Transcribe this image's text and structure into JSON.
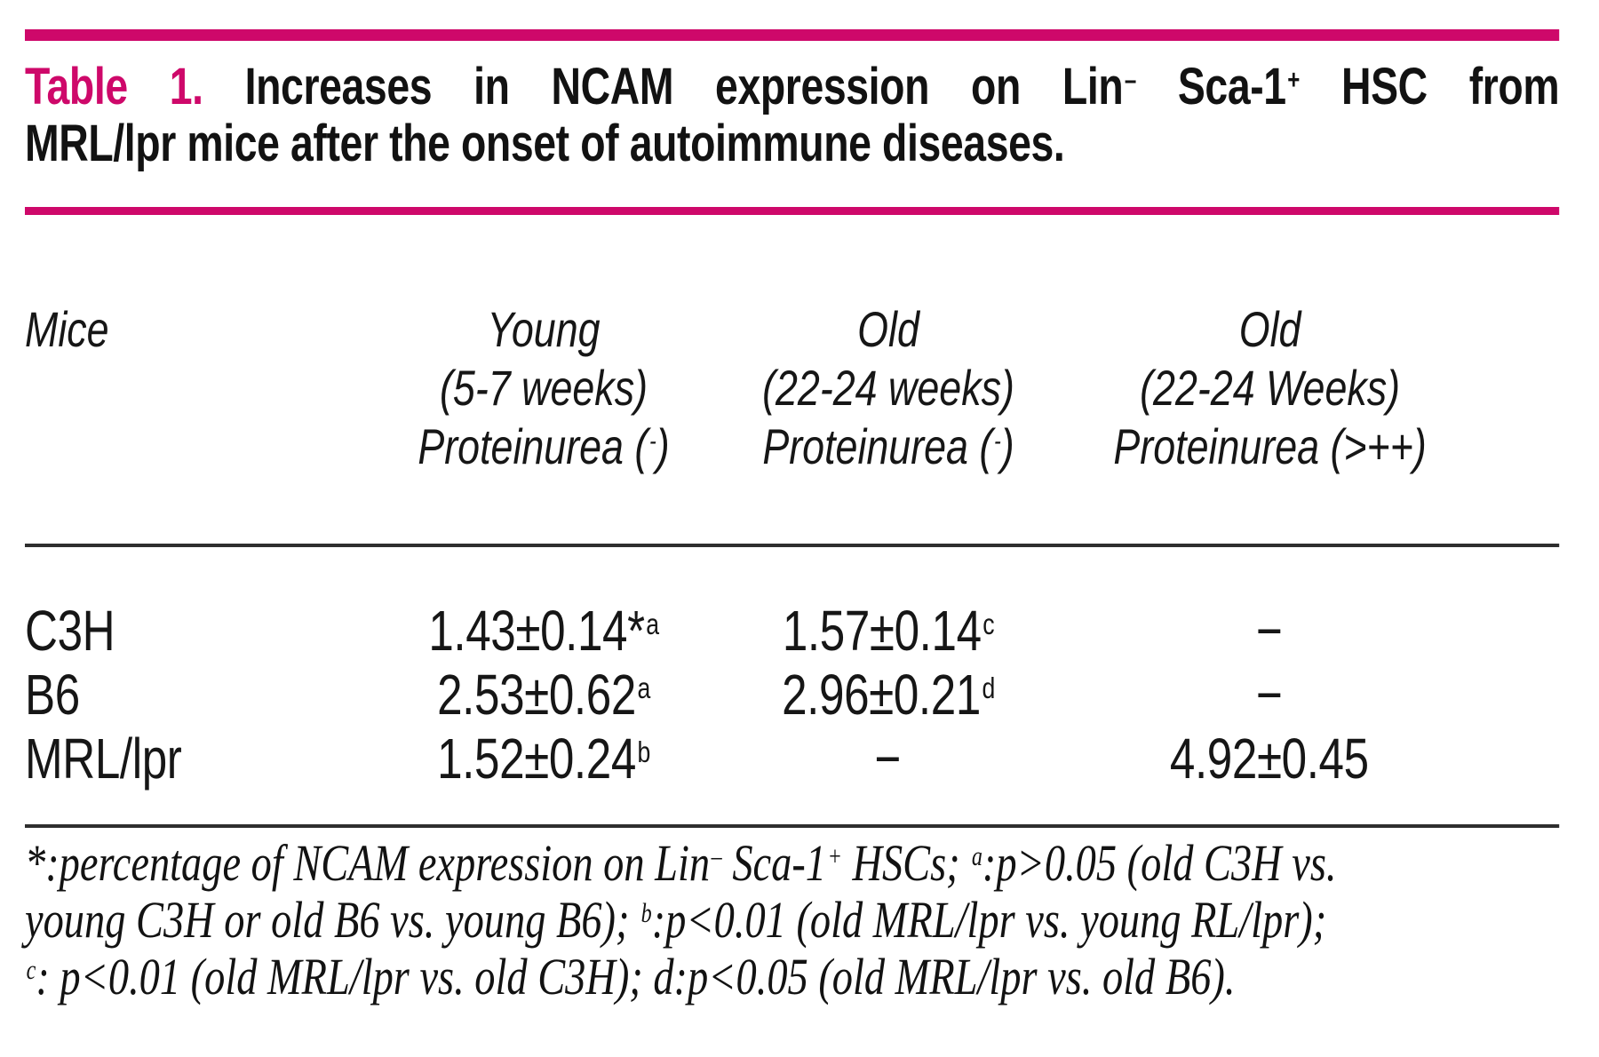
{
  "colors": {
    "accent_magenta": "#CE086A",
    "text_black": "#161616",
    "rule_dark": "#2e2e2e",
    "background": "#ffffff"
  },
  "title": {
    "label": "Table 1.",
    "line1_segments": [
      {
        "text": "Increases in NCAM expression on Lin"
      },
      {
        "text": "–",
        "sup": true
      },
      {
        "text": " Sca-1"
      },
      {
        "text": "+",
        "sup": true
      },
      {
        "text": " HSC from"
      }
    ],
    "line2": "MRL/lpr mice after the onset of autoimmune diseases."
  },
  "table": {
    "header": {
      "col1": {
        "line1": [
          {
            "text": "Mice"
          }
        ]
      },
      "col2": {
        "line1": [
          {
            "text": "Young"
          }
        ],
        "line2": [
          {
            "text": "(5-7 weeks)"
          }
        ],
        "line3": [
          {
            "text": "Proteinurea ("
          },
          {
            "text": "-",
            "sup": true
          },
          {
            "text": ")"
          }
        ]
      },
      "col3": {
        "line1": [
          {
            "text": "Old"
          }
        ],
        "line2": [
          {
            "text": "(22-24 weeks)"
          }
        ],
        "line3": [
          {
            "text": "Proteinurea ("
          },
          {
            "text": "-",
            "sup": true
          },
          {
            "text": ")"
          }
        ]
      },
      "col4": {
        "line1": [
          {
            "text": "Old"
          }
        ],
        "line2": [
          {
            "text": "(22-24 Weeks)"
          }
        ],
        "line3": [
          {
            "text": "Proteinurea (>++)"
          }
        ]
      }
    },
    "rows": [
      {
        "name": "C3H",
        "young": {
          "value": "1.43±0.14*",
          "sup": "a"
        },
        "old_neg": {
          "value": "1.57±0.14",
          "sup": "c"
        },
        "old_pos": {
          "value": "−",
          "sup": ""
        }
      },
      {
        "name": "B6",
        "young": {
          "value": "2.53±0.62",
          "sup": "a"
        },
        "old_neg": {
          "value": "2.96±0.21",
          "sup": "d"
        },
        "old_pos": {
          "value": "−",
          "sup": ""
        }
      },
      {
        "name": "MRL/lpr",
        "young": {
          "value": "1.52±0.24",
          "sup": "b"
        },
        "old_neg": {
          "value": "−",
          "sup": ""
        },
        "old_pos": {
          "value": "4.92±0.45",
          "sup": ""
        }
      }
    ]
  },
  "footnote": {
    "line1": [
      {
        "text": "*:percentage of NCAM expression on Lin"
      },
      {
        "text": "–",
        "sup": true
      },
      {
        "text": " Sca-1"
      },
      {
        "text": "+",
        "sup": true
      },
      {
        "text": " HSCs; "
      },
      {
        "text": "a",
        "sup": true
      },
      {
        "text": ":p>0.05 (old C3H vs."
      }
    ],
    "line2": [
      {
        "text": "young C3H or old B6 vs. young B6); "
      },
      {
        "text": "b",
        "sup": true
      },
      {
        "text": ":p<0.01 (old MRL/lpr vs. young RL/lpr);"
      }
    ],
    "line3": [
      {
        "text": "c",
        "sup": true
      },
      {
        "text": ": p<0.01 (old MRL/lpr vs. old C3H); d:p<0.05 (old MRL/lpr vs. old B6)."
      }
    ]
  },
  "chart_data": {
    "type": "table",
    "title": "Table 1. Increases in NCAM expression on Lin- Sca-1+ HSC from MRL/lpr mice after the onset of autoimmune diseases.",
    "columns": [
      "Mice",
      "Young (5-7 weeks) Proteinurea (-)",
      "Old (22-24 weeks) Proteinurea (-)",
      "Old (22-24 Weeks) Proteinurea (>++)"
    ],
    "rows": [
      [
        "C3H",
        "1.43±0.14*a",
        "1.57±0.14c",
        "—"
      ],
      [
        "B6",
        "2.53±0.62a",
        "2.96±0.21d",
        "—"
      ],
      [
        "MRL/lpr",
        "1.52±0.24b",
        "—",
        "4.92±0.45"
      ]
    ]
  }
}
